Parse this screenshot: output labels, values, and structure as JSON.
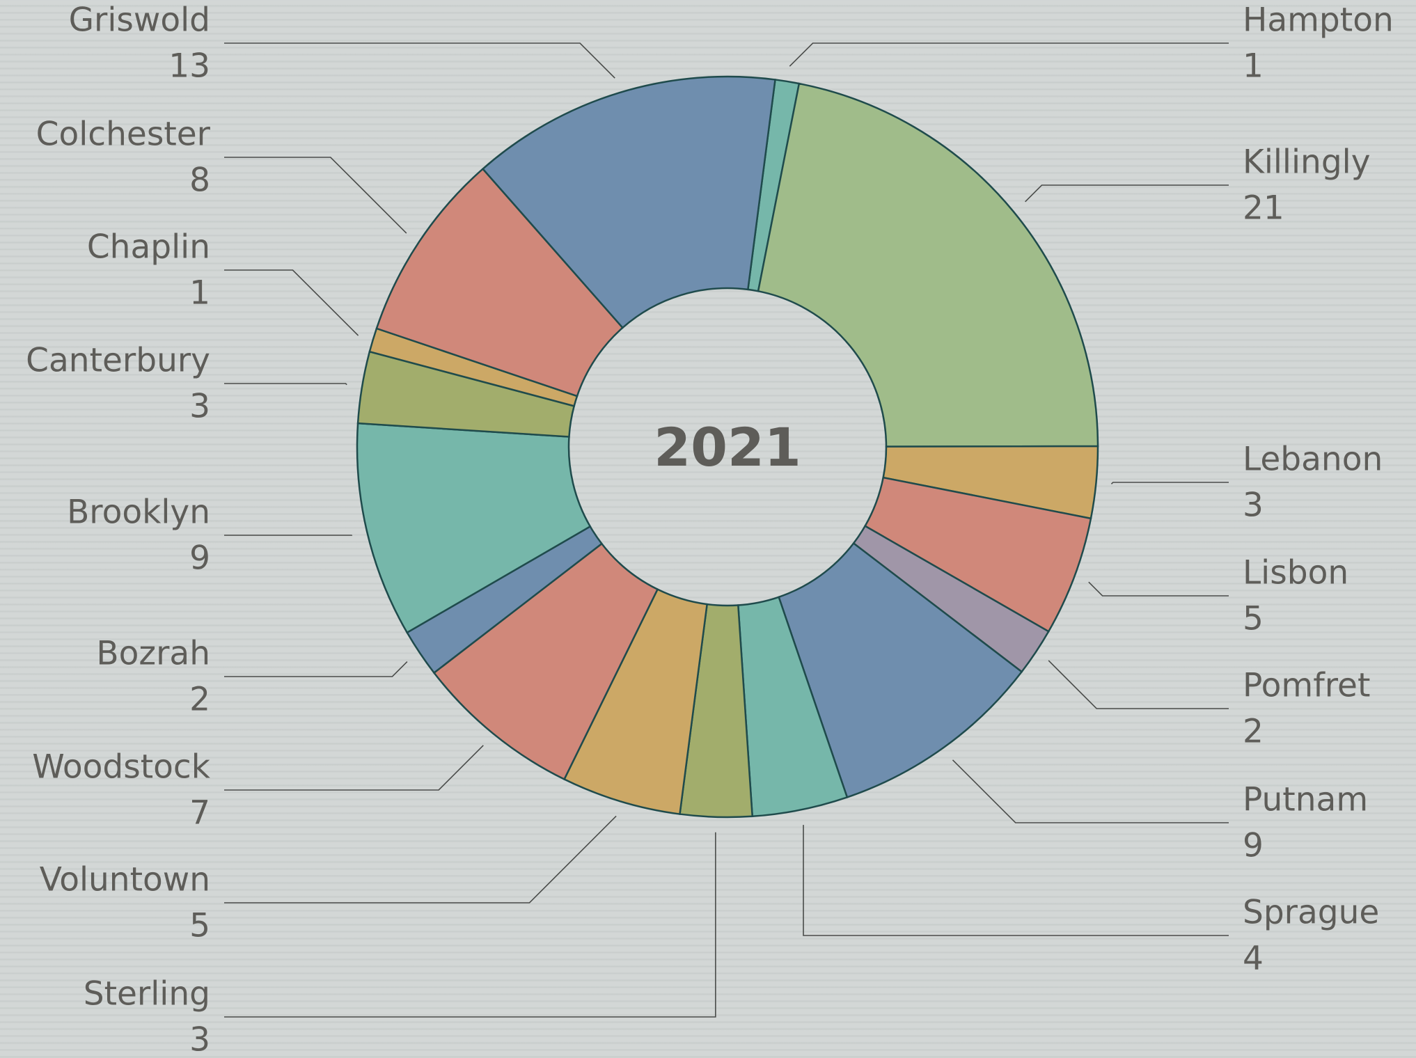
{
  "chart_data": {
    "type": "donut",
    "center_label": "2021",
    "categories": [
      "Hampton",
      "Killingly",
      "Lebanon",
      "Lisbon",
      "Pomfret",
      "Putnam",
      "Sprague",
      "Sterling",
      "Voluntown",
      "Woodstock",
      "Bozrah",
      "Brooklyn",
      "Canterbury",
      "Chaplin",
      "Colchester",
      "Griswold"
    ],
    "values": [
      1,
      21,
      3,
      5,
      2,
      9,
      4,
      3,
      5,
      7,
      2,
      9,
      3,
      1,
      8,
      13
    ],
    "colors": [
      "#76b7aa",
      "#a0bc8a",
      "#cca866",
      "#d0887a",
      "#a096a8",
      "#6f8eae",
      "#76b7aa",
      "#a2ad6c",
      "#cca866",
      "#d0887a",
      "#6f8eae",
      "#76b7aa",
      "#a2ad6c",
      "#cca866",
      "#d0887a",
      "#6f8eae"
    ]
  }
}
